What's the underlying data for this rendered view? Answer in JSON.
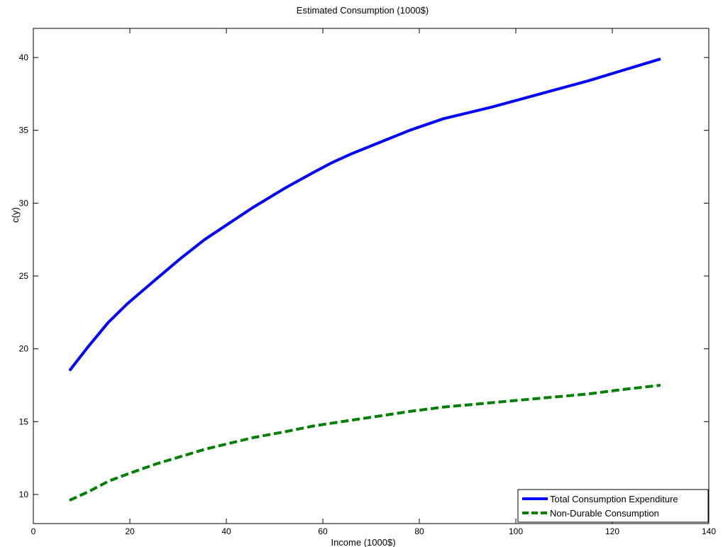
{
  "chart_data": {
    "type": "line",
    "title": "Estimated Consumption (1000$)",
    "xlabel": "Income (1000$)",
    "ylabel": "c(y)",
    "xlim": [
      0,
      140
    ],
    "ylim": [
      8,
      42
    ],
    "xticks": [
      0,
      20,
      40,
      60,
      80,
      100,
      120,
      140
    ],
    "yticks": [
      10,
      15,
      20,
      25,
      30,
      35,
      40
    ],
    "grid": false,
    "legend_position": "bottom-right",
    "series": [
      {
        "name": "Total Consumption Expenditure",
        "color": "#0000ff",
        "style": "solid",
        "x": [
          7.5,
          11.5,
          15.5,
          19.5,
          25.5,
          30.5,
          35.5,
          40.5,
          45.5,
          52,
          58,
          62,
          66,
          72,
          78,
          85,
          95,
          105,
          115,
          122,
          130
        ],
        "y": [
          18.5,
          20.2,
          21.8,
          23.1,
          24.8,
          26.2,
          27.5,
          28.6,
          29.7,
          31.0,
          32.1,
          32.8,
          33.4,
          34.2,
          35.0,
          35.8,
          36.6,
          37.5,
          38.4,
          39.1,
          39.9
        ]
      },
      {
        "name": "Non-Durable Consumption",
        "color": "#007f00",
        "style": "dashed",
        "x": [
          7.5,
          11.5,
          15.5,
          19.5,
          25.5,
          30.5,
          35.5,
          40.5,
          45.5,
          52,
          58,
          62,
          66,
          72,
          78,
          85,
          95,
          105,
          115,
          122,
          130
        ],
        "y": [
          9.6,
          10.2,
          10.9,
          11.4,
          12.1,
          12.6,
          13.1,
          13.5,
          13.9,
          14.3,
          14.7,
          14.9,
          15.1,
          15.4,
          15.7,
          16.0,
          16.3,
          16.6,
          16.9,
          17.2,
          17.5
        ]
      }
    ]
  }
}
